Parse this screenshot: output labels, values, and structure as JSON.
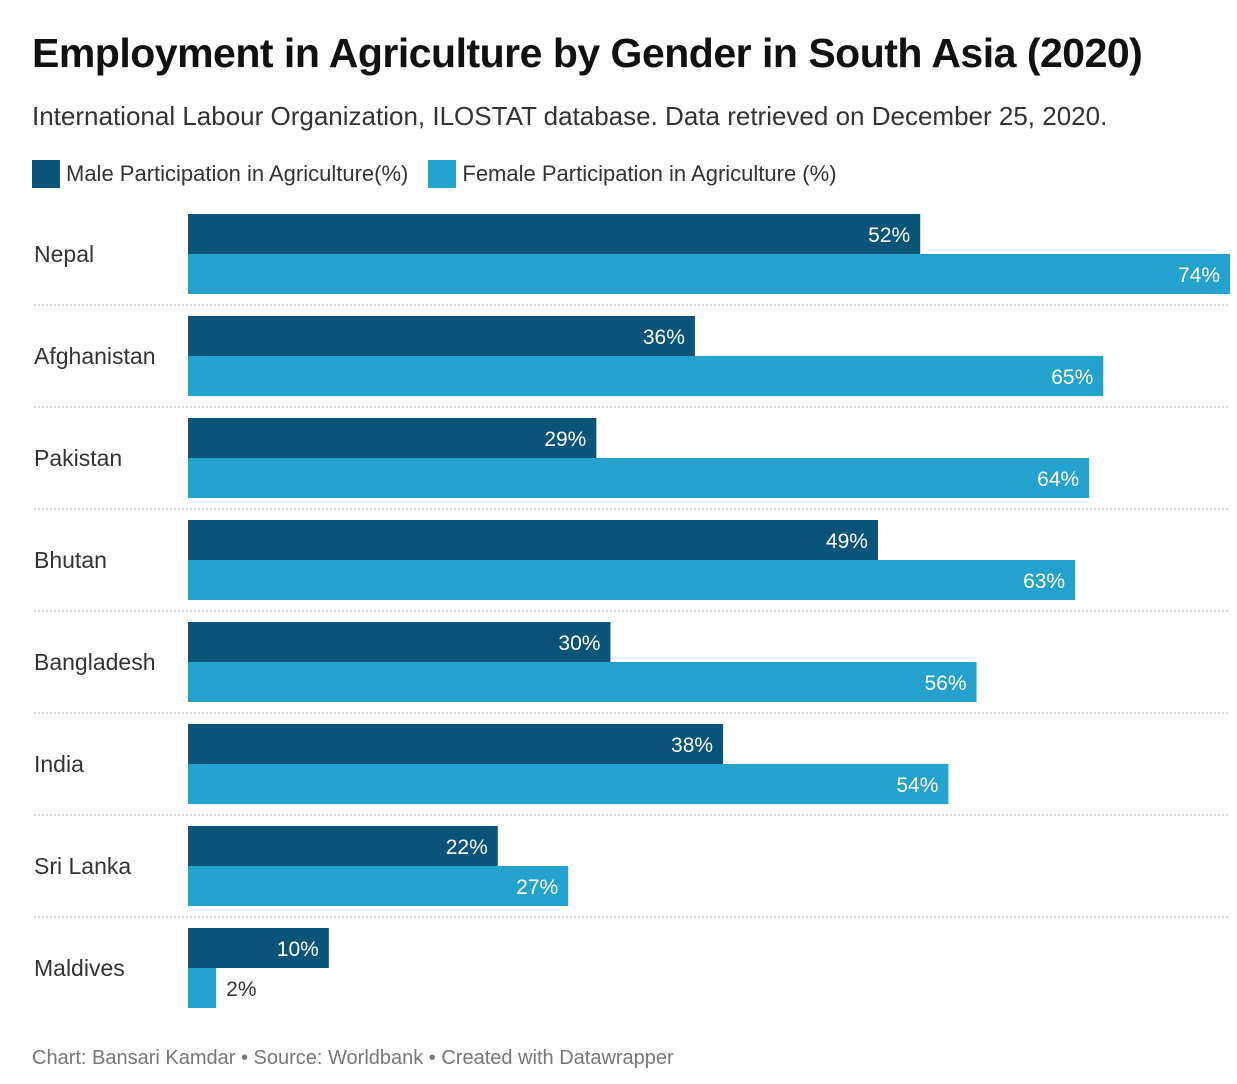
{
  "chart_data": {
    "type": "bar",
    "orientation": "horizontal",
    "title": "Employment in Agriculture by Gender in South Asia (2020)",
    "subtitle": "International Labour Organization, ILOSTAT database. Data retrieved on December 25, 2020.",
    "categories": [
      "Nepal",
      "Afghanistan",
      "Pakistan",
      "Bhutan",
      "Bangladesh",
      "India",
      "Sri Lanka",
      "Maldives"
    ],
    "series": [
      {
        "name": "Male Participation in Agriculture(%)",
        "color": "#0b5479",
        "values": [
          52,
          36,
          29,
          49,
          30,
          38,
          22,
          10
        ],
        "labels": [
          "52%",
          "36%",
          "29%",
          "49%",
          "30%",
          "38%",
          "22%",
          "10%"
        ]
      },
      {
        "name": "Female Participation in Agriculture (%)",
        "color": "#25a1cd",
        "values": [
          74,
          65,
          64,
          63,
          56,
          54,
          27,
          2
        ],
        "labels": [
          "74%",
          "65%",
          "64%",
          "63%",
          "56%",
          "54%",
          "27%",
          "2%"
        ]
      }
    ],
    "xlim": [
      0,
      74
    ],
    "legend_position": "top-left",
    "grid": false
  },
  "footer": {
    "credit": "Chart: Bansari Kamdar • Source: Worldbank • Created with Datawrapper"
  }
}
